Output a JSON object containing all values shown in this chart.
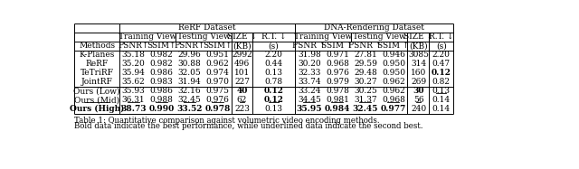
{
  "title_rerf": "ReRF Dataset",
  "title_dna": "DNA-Rendering Dataset",
  "caption": "Table 1: Quantitative comparison against volumetric video encoding methods. Bold data indicate the best performance, while underlined data indicate the second best.",
  "headers_sub": [
    "Training View",
    "Testing View",
    "SIZE ↓",
    "R.T. ↓"
  ],
  "headers_col_rerf": [
    "PSNR↑",
    "SSIM↑",
    "PSNR↑",
    "SSIM↑",
    "(KB)",
    "(s)"
  ],
  "headers_col_dna": [
    "PSNR ↑",
    "SSIM ↑",
    "PSNR ↑",
    "SSIM ↑",
    "(KB)",
    "(s)"
  ],
  "methods": [
    "K-Planes",
    "ReRF",
    "TeTriRF",
    "JointRF",
    "Ours (Low)",
    "Ours (Mid)",
    "Ours (High)"
  ],
  "rerf_data": [
    [
      "35.18",
      "0.982",
      "29.96",
      "0.951",
      "2992",
      "2.20"
    ],
    [
      "35.20",
      "0.982",
      "30.88",
      "0.962",
      "496",
      "0.44"
    ],
    [
      "35.94",
      "0.986",
      "32.05",
      "0.974",
      "101",
      "0.13"
    ],
    [
      "35.62",
      "0.983",
      "31.94",
      "0.970",
      "227",
      "0.78"
    ],
    [
      "35.93",
      "0.986",
      "32.16",
      "0.975",
      "40",
      "0.12"
    ],
    [
      "36.31",
      "0.988",
      "32.45",
      "0.976",
      "62",
      "0.12"
    ],
    [
      "38.73",
      "0.990",
      "33.52",
      "0.978",
      "223",
      "0.13"
    ]
  ],
  "dna_data": [
    [
      "31.98",
      "0.971",
      "27.81",
      "0.946",
      "3085",
      "2.20"
    ],
    [
      "30.20",
      "0.968",
      "29.59",
      "0.950",
      "314",
      "0.47"
    ],
    [
      "32.33",
      "0.976",
      "29.48",
      "0.950",
      "160",
      "0.12"
    ],
    [
      "33.74",
      "0.979",
      "30.27",
      "0.962",
      "269",
      "0.82"
    ],
    [
      "33.24",
      "0.978",
      "30.25",
      "0.962",
      "30",
      "0.13"
    ],
    [
      "34.45",
      "0.981",
      "31.37",
      "0.968",
      "56",
      "0.14"
    ],
    [
      "35.95",
      "0.984",
      "32.45",
      "0.977",
      "240",
      "0.14"
    ]
  ],
  "rerf_bold": [
    [
      false,
      false,
      false,
      false,
      false,
      false
    ],
    [
      false,
      false,
      false,
      false,
      false,
      false
    ],
    [
      false,
      false,
      false,
      false,
      false,
      false
    ],
    [
      false,
      false,
      false,
      false,
      false,
      false
    ],
    [
      false,
      false,
      false,
      false,
      true,
      true
    ],
    [
      false,
      false,
      false,
      false,
      false,
      true
    ],
    [
      true,
      true,
      true,
      true,
      false,
      false
    ]
  ],
  "rerf_underline": [
    [
      false,
      false,
      false,
      false,
      false,
      false
    ],
    [
      false,
      false,
      false,
      false,
      false,
      false
    ],
    [
      false,
      false,
      false,
      false,
      false,
      false
    ],
    [
      false,
      false,
      false,
      false,
      false,
      false
    ],
    [
      false,
      false,
      false,
      false,
      false,
      false
    ],
    [
      true,
      true,
      true,
      true,
      true,
      true
    ],
    [
      false,
      false,
      false,
      false,
      false,
      false
    ]
  ],
  "dna_bold": [
    [
      false,
      false,
      false,
      false,
      false,
      false
    ],
    [
      false,
      false,
      false,
      false,
      false,
      false
    ],
    [
      false,
      false,
      false,
      false,
      false,
      true
    ],
    [
      false,
      false,
      false,
      false,
      false,
      false
    ],
    [
      false,
      false,
      false,
      false,
      true,
      false
    ],
    [
      false,
      false,
      false,
      false,
      false,
      false
    ],
    [
      true,
      true,
      true,
      true,
      false,
      false
    ]
  ],
  "dna_underline": [
    [
      false,
      false,
      false,
      false,
      false,
      false
    ],
    [
      false,
      false,
      false,
      false,
      false,
      false
    ],
    [
      false,
      false,
      false,
      false,
      false,
      false
    ],
    [
      false,
      false,
      false,
      false,
      false,
      false
    ],
    [
      false,
      false,
      false,
      false,
      false,
      true
    ],
    [
      true,
      true,
      true,
      true,
      true,
      false
    ],
    [
      false,
      false,
      false,
      false,
      false,
      false
    ]
  ],
  "method_bold": [
    false,
    false,
    false,
    false,
    false,
    false,
    true
  ],
  "method_underline": [
    false,
    false,
    false,
    false,
    false,
    true,
    false
  ],
  "fs": 6.5,
  "fs_cap": 6.2
}
